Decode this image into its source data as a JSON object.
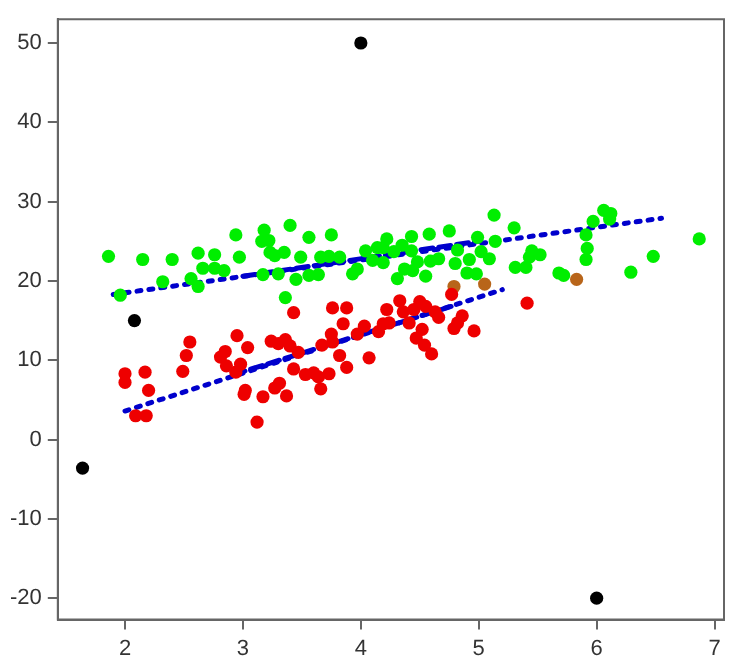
{
  "chart_data": {
    "type": "scatter",
    "xlim": [
      1.43,
      7.08
    ],
    "ylim": [
      -22.7,
      53
    ],
    "xticks": [
      2,
      3,
      4,
      5,
      6,
      7
    ],
    "yticks": [
      -20,
      -10,
      0,
      10,
      20,
      30,
      40,
      50
    ],
    "grid": false,
    "legend": false,
    "marker": "circle",
    "series": [
      {
        "color": "#00ee00",
        "x": [
          1.86,
          1.96,
          2.15,
          2.32,
          2.4,
          2.56,
          2.62,
          2.62,
          2.66,
          2.76,
          2.76,
          2.84,
          2.94,
          2.97,
          3.18,
          3.16,
          3.22,
          3.23,
          3.17,
          3.27,
          3.35,
          3.4,
          3.36,
          3.3,
          3.45,
          3.49,
          3.56,
          3.56,
          3.64,
          3.66,
          3.75,
          3.73,
          3.82,
          3.93,
          3.97,
          4.04,
          4.1,
          4.14,
          4.19,
          4.22,
          4.19,
          4.28,
          4.31,
          4.35,
          4.37,
          4.43,
          4.43,
          4.44,
          4.48,
          4.55,
          4.58,
          4.59,
          4.66,
          4.75,
          4.8,
          4.82,
          4.9,
          4.92,
          4.99,
          4.98,
          5.02,
          5.09,
          5.13,
          5.14,
          5.3,
          5.31,
          5.4,
          5.43,
          5.45,
          5.52,
          5.68,
          5.72,
          5.91,
          5.92,
          5.91,
          5.97,
          6.06,
          6.12,
          6.11,
          6.29,
          6.48,
          6.87
        ],
        "values": [
          23.1,
          18.2,
          22.7,
          19.9,
          22.7,
          20.3,
          23.5,
          19.3,
          21.6,
          23.3,
          21.6,
          21.3,
          25.8,
          23,
          26.4,
          25,
          25.1,
          23.6,
          20.8,
          23.2,
          23.6,
          27,
          17.9,
          20.9,
          20.2,
          23,
          25.5,
          20.7,
          20.8,
          23,
          25.8,
          23.1,
          23,
          20.9,
          21.5,
          23.8,
          22.6,
          24.2,
          24.2,
          25.3,
          22.3,
          23.7,
          20.3,
          24.5,
          21.5,
          25.6,
          23.8,
          21.3,
          22.4,
          20.6,
          25.9,
          22.5,
          22.8,
          26.3,
          22.2,
          23.9,
          21,
          22.7,
          25.5,
          20.9,
          23.7,
          22.8,
          28.3,
          25,
          26.7,
          21.7,
          21.7,
          23,
          23.8,
          23.3,
          21,
          20.7,
          25.8,
          24.1,
          22.7,
          27.5,
          28.9,
          28.5,
          27.8,
          21.1,
          23.1,
          25.3
        ]
      },
      {
        "color": "#ee0000",
        "x": [
          2,
          2,
          2.09,
          2.18,
          2.17,
          2.2,
          2.49,
          2.52,
          2.55,
          2.81,
          2.85,
          2.86,
          2.95,
          2.94,
          2.98,
          3.04,
          3.01,
          3.02,
          3.12,
          3.17,
          3.24,
          3.27,
          3.31,
          3.3,
          3.36,
          3.37,
          3.4,
          3.43,
          3.43,
          3.47,
          3.53,
          3.6,
          3.64,
          3.66,
          3.67,
          3.73,
          3.75,
          3.76,
          3.76,
          3.82,
          3.85,
          3.88,
          3.88,
          3.97,
          4.03,
          4.07,
          4.15,
          4.19,
          4.22,
          4.24,
          4.33,
          4.36,
          4.41,
          4.45,
          4.47,
          4.5,
          4.52,
          4.54,
          4.55,
          4.6,
          4.63,
          4.66,
          4.77,
          4.79,
          4.82,
          4.86,
          4.96,
          5.41
        ],
        "values": [
          8.3,
          7.2,
          3,
          3,
          8.5,
          6.2,
          8.6,
          10.6,
          12.3,
          10.4,
          11.1,
          9.3,
          13.1,
          8.5,
          9.5,
          11.6,
          5.7,
          6.2,
          2.2,
          5.4,
          12.4,
          6.5,
          7.1,
          12.1,
          12.6,
          5.5,
          11.8,
          16,
          8.9,
          11,
          8.2,
          8.4,
          7.9,
          6.4,
          11.9,
          8.3,
          13.3,
          16.6,
          12.3,
          10.6,
          14.6,
          16.6,
          9.1,
          13.3,
          14.3,
          10.3,
          13.6,
          14.6,
          16.4,
          14.7,
          17.5,
          16.1,
          14.7,
          16.4,
          12.8,
          17.4,
          13.9,
          11.9,
          16.8,
          10.8,
          16.1,
          15.4,
          18.3,
          14,
          14.7,
          15.6,
          13.7,
          17.2
        ]
      },
      {
        "color": "#b8651a",
        "x": [
          4.79,
          5.05,
          5.83
        ],
        "values": [
          19.3,
          19.6,
          20.2
        ]
      },
      {
        "color": "#000000",
        "x": [
          4,
          2.08,
          1.64,
          6
        ],
        "values": [
          50,
          15,
          -3.6,
          -20
        ]
      },
      {
        "type": "line",
        "color": "#0000cc",
        "line_style": "dotted",
        "marker": "none",
        "x": [
          1.9,
          6.55
        ],
        "values": [
          18.3,
          27.9
        ]
      },
      {
        "type": "line",
        "color": "#0000cc",
        "line_style": "dashed",
        "marker": "none",
        "x": [
          3,
          5
        ],
        "values": [
          20.6,
          25
        ]
      },
      {
        "type": "line",
        "color": "#0000cc",
        "line_style": "dotted",
        "marker": "none",
        "x": [
          2,
          5.2
        ],
        "values": [
          3.6,
          18.9
        ]
      },
      {
        "type": "line",
        "color": "#0000cc",
        "line_style": "dashed",
        "marker": "none",
        "x": [
          2.92,
          4.77
        ],
        "values": [
          8.2,
          16.8
        ]
      }
    ]
  }
}
